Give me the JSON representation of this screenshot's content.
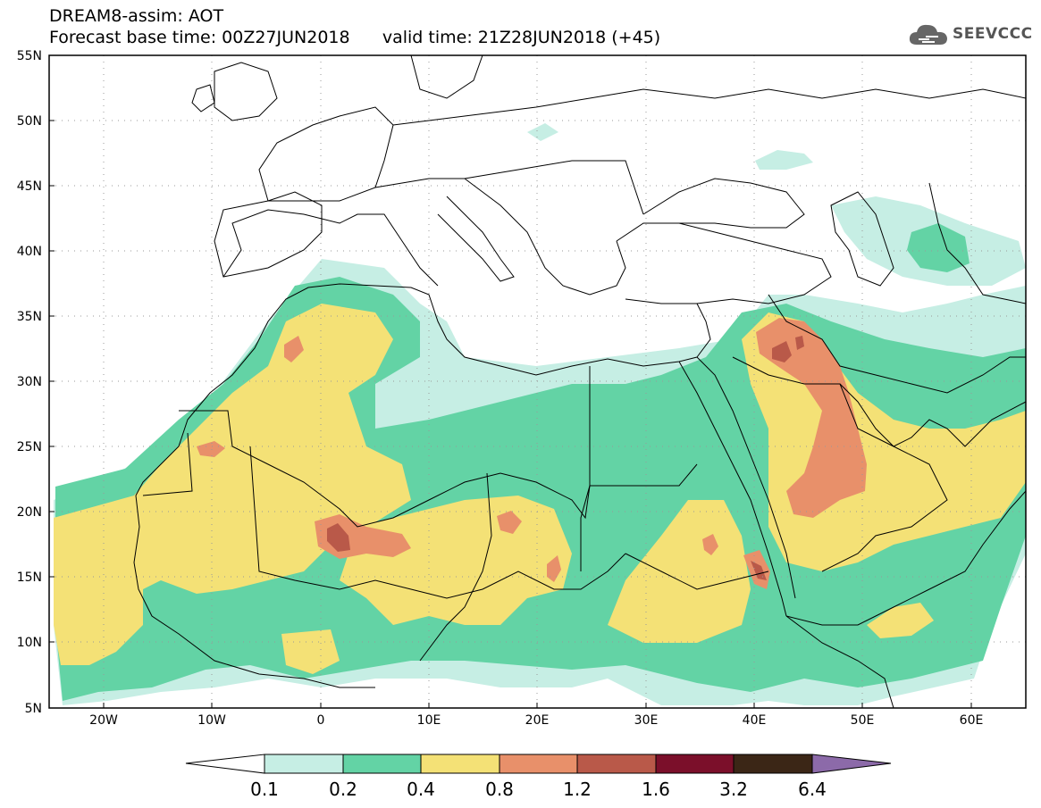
{
  "header": {
    "title": "DREAM8-assim: AOT",
    "base_time_label": "Forecast base time: 00Z27JUN2018",
    "valid_time_label": "valid time: 21Z28JUN2018 (+45)"
  },
  "logo": {
    "text": "SEEVCCC",
    "icon": "cloud-icon"
  },
  "map": {
    "lat_labels": [
      "55N",
      "50N",
      "45N",
      "40N",
      "35N",
      "30N",
      "25N",
      "20N",
      "15N",
      "10N",
      "5N"
    ],
    "lon_labels": [
      "20W",
      "10W",
      "0",
      "10E",
      "20E",
      "30E",
      "40E",
      "50E",
      "60E"
    ],
    "grid": true
  },
  "colorbar": {
    "labels": [
      "0.1",
      "0.2",
      "0.4",
      "0.8",
      "1.2",
      "1.6",
      "3.2",
      "6.4"
    ],
    "colors": [
      "#ffffff",
      "#c6eee4",
      "#63d3a5",
      "#f4e176",
      "#e8906a",
      "#b95949",
      "#7b0f2a",
      "#3b2616",
      "#8c6aa9"
    ]
  },
  "palette": {
    "c1": "#c6eee4",
    "c2": "#63d3a5",
    "c3": "#f4e176",
    "c4": "#e8906a",
    "c5": "#b95949",
    "border": "#000000"
  }
}
